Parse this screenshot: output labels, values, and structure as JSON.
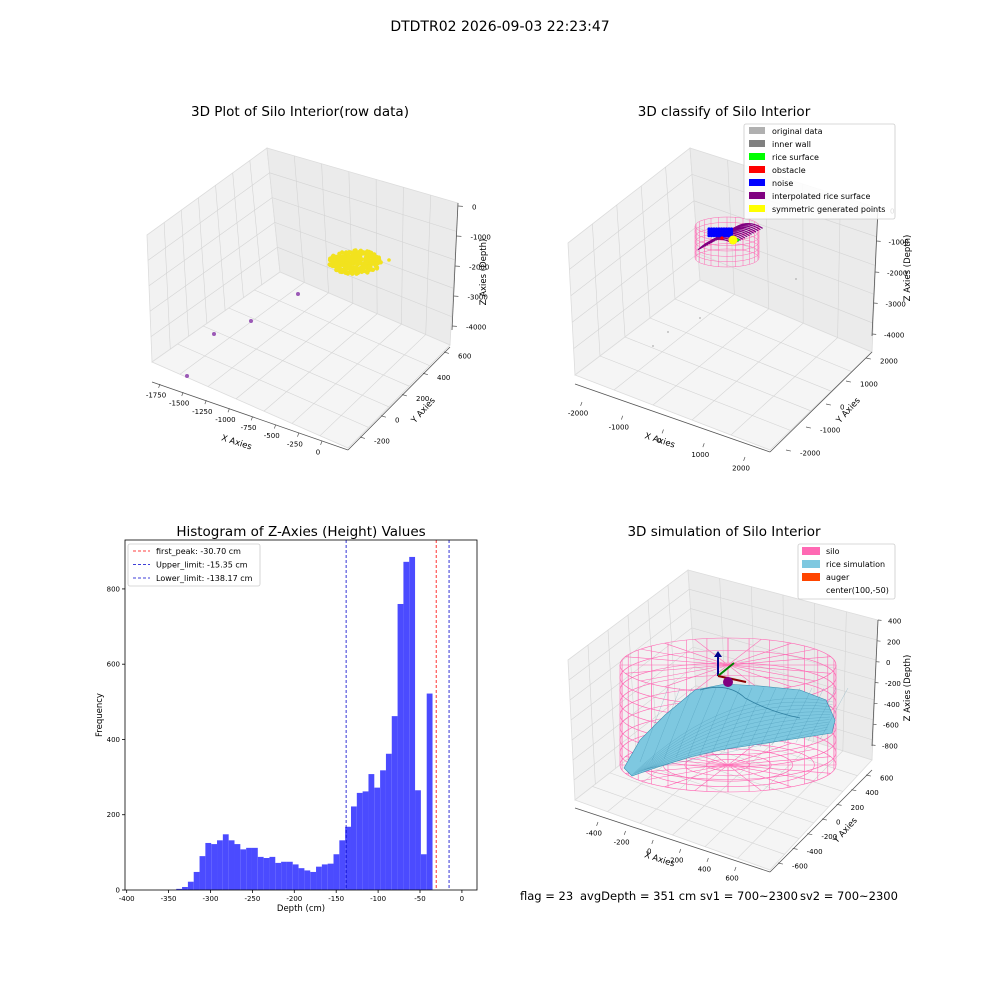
{
  "figure": {
    "suptitle": "DTDTR02 2026-09-03 22:23:47",
    "footer": {
      "flag": "flag = 23",
      "avg_depth": "avgDepth = 351 cm",
      "sv1": "sv1 = 700~2300",
      "sv2": "sv2 = 700~2300"
    }
  },
  "colors": {
    "points_raw": "#f2e21e",
    "points_outlier": "#9b59b6",
    "histogram_bar": "#4b4bff",
    "first_peak_line": "#ff0000",
    "limit_line": "#0000cc",
    "silo_mesh": "#ff69b4",
    "rice_surface": "#7ec8e0",
    "original_data": "#b0b0b0",
    "inner_wall": "#808080",
    "rice_surface_cls": "#00ff00",
    "obstacle": "#ff0000",
    "noise": "#0000ff",
    "interpolated": "#800080",
    "symmetric": "#ffff00",
    "auger": "#ff4500"
  },
  "chart_data": [
    {
      "type": "scatter3d",
      "title": "3D Plot of Silo Interior(row data)",
      "xlabel": "X Axies",
      "ylabel": "Y Axies",
      "zlabel": "Z Axies (Depth)",
      "xticks": [
        "-1750",
        "-1500",
        "-1250",
        "-1000",
        "-750",
        "-500",
        "-250",
        "0"
      ],
      "yticks": [
        "-200",
        "0",
        "200",
        "400",
        "600"
      ],
      "zticks": [
        "0",
        "-1000",
        "-2000",
        "-3000",
        "-4000"
      ],
      "point_groups": [
        {
          "color": "points_raw",
          "cluster": {
            "x": -150,
            "y": 300,
            "z": -2000
          },
          "count": "~6000"
        },
        {
          "color": "points_outlier",
          "points": [
            [
              -1750,
              -200,
              -4000
            ],
            [
              -1500,
              0,
              -3000
            ],
            [
              -1250,
              200,
              -2500
            ],
            [
              -500,
              500,
              -1500
            ]
          ]
        }
      ]
    },
    {
      "type": "scatter3d",
      "title": "3D classify of Silo Interior",
      "xlabel": "X Axies",
      "ylabel": "Y Axies",
      "zlabel": "Z Axies (Depth)",
      "xticks": [
        "-2000",
        "-1000",
        "0",
        "1000",
        "2000"
      ],
      "yticks": [
        "-2000",
        "-1000",
        "0",
        "1000",
        "2000"
      ],
      "zticks": [
        "0",
        "-1000",
        "-2000",
        "-3000",
        "-4000"
      ],
      "legend_position": "upper-right",
      "legend": [
        {
          "label": "original data",
          "color": "original_data"
        },
        {
          "label": "inner wall",
          "color": "inner_wall"
        },
        {
          "label": "rice surface",
          "color": "rice_surface_cls"
        },
        {
          "label": "obstacle",
          "color": "obstacle"
        },
        {
          "label": "noise",
          "color": "noise"
        },
        {
          "label": "interpolated rice surface",
          "color": "interpolated"
        },
        {
          "label": "symmetric generated points",
          "color": "symmetric"
        }
      ]
    },
    {
      "type": "bar",
      "title": "Histogram of Z-Axies (Height) Values",
      "xlabel": "Depth (cm)",
      "ylabel": "Frequency",
      "xlim": [
        -402,
        18
      ],
      "ylim": [
        0,
        930
      ],
      "xticks": [
        -400,
        -350,
        -300,
        -250,
        -200,
        -150,
        -100,
        -50,
        0
      ],
      "yticks": [
        0,
        200,
        400,
        600,
        800
      ],
      "bin_width": 6.95,
      "bin_start": -340.85,
      "values": [
        3,
        8,
        22,
        48,
        90,
        125,
        122,
        132,
        148,
        132,
        122,
        108,
        112,
        112,
        88,
        85,
        88,
        72,
        75,
        75,
        68,
        58,
        52,
        48,
        62,
        68,
        70,
        95,
        132,
        168,
        222,
        258,
        262,
        308,
        272,
        318,
        362,
        462,
        760,
        872,
        885,
        265,
        95,
        522
      ],
      "legend_position": "upper-left",
      "vlines": [
        {
          "label": "first_peak: -30.70 cm",
          "x": -30.7,
          "color": "first_peak_line"
        },
        {
          "label": "Upper_limit: -15.35 cm",
          "x": -15.35,
          "color": "limit_line"
        },
        {
          "label": "Lower_limit: -138.17 cm",
          "x": -138.17,
          "color": "limit_line"
        }
      ]
    },
    {
      "type": "surface3d",
      "title": "3D simulation of Silo Interior",
      "xlabel": "X Axies",
      "ylabel": "Y Axies",
      "zlabel": "Z Axies (Depth)",
      "xticks": [
        "-400",
        "-200",
        "0",
        "200",
        "400",
        "600"
      ],
      "yticks": [
        "-600",
        "-400",
        "-200",
        "0",
        "200",
        "400",
        "600"
      ],
      "zticks": [
        "400",
        "200",
        "0",
        "-200",
        "-400",
        "-600",
        "-800"
      ],
      "legend_position": "upper-right",
      "legend": [
        {
          "label": "silo",
          "color": "silo_mesh",
          "swatch": true
        },
        {
          "label": "rice simulation",
          "color": "rice_surface",
          "swatch": true
        },
        {
          "label": "auger",
          "color": "auger",
          "swatch": true
        },
        {
          "label": "center(100,-50)",
          "color": "",
          "swatch": false
        }
      ]
    }
  ]
}
